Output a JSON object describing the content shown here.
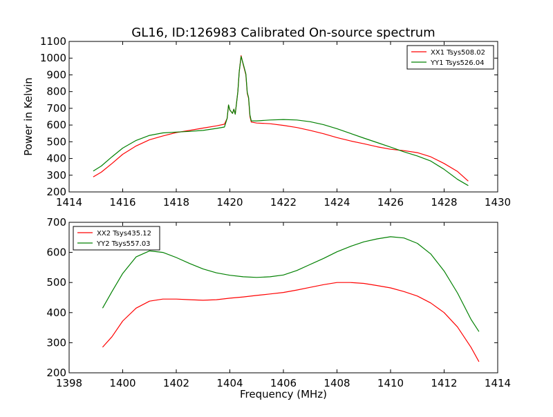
{
  "title": "GL16, ID:126983 Calibrated On-source spectrum",
  "colors": {
    "red": "#ff0000",
    "green": "#008000"
  },
  "chart_data": [
    {
      "type": "line",
      "ylabel": "Power in Kelvin",
      "xlabel": "",
      "xlim": [
        1414,
        1430
      ],
      "ylim": [
        200,
        1100
      ],
      "xticks": [
        1414,
        1416,
        1418,
        1420,
        1422,
        1424,
        1426,
        1428,
        1430
      ],
      "yticks": [
        200,
        300,
        400,
        500,
        600,
        700,
        800,
        900,
        1000,
        1100
      ],
      "legend": "top-right",
      "series": [
        {
          "name": "XX1 Tsys508.02",
          "color": "#ff0000",
          "points": [
            [
              1414.9,
              290
            ],
            [
              1415.2,
              318
            ],
            [
              1415.6,
              370
            ],
            [
              1416.0,
              425
            ],
            [
              1416.5,
              475
            ],
            [
              1417.0,
              512
            ],
            [
              1417.5,
              535
            ],
            [
              1418.0,
              555
            ],
            [
              1418.5,
              568
            ],
            [
              1419.0,
              582
            ],
            [
              1419.5,
              595
            ],
            [
              1419.8,
              605
            ],
            [
              1419.9,
              640
            ],
            [
              1419.95,
              720
            ],
            [
              1420.0,
              690
            ],
            [
              1420.1,
              670
            ],
            [
              1420.15,
              695
            ],
            [
              1420.2,
              665
            ],
            [
              1420.3,
              800
            ],
            [
              1420.35,
              920
            ],
            [
              1420.42,
              1015
            ],
            [
              1420.5,
              960
            ],
            [
              1420.6,
              900
            ],
            [
              1420.65,
              790
            ],
            [
              1420.7,
              760
            ],
            [
              1420.75,
              650
            ],
            [
              1420.8,
              618
            ],
            [
              1421.0,
              612
            ],
            [
              1421.5,
              608
            ],
            [
              1422.0,
              598
            ],
            [
              1422.5,
              585
            ],
            [
              1423.0,
              568
            ],
            [
              1423.5,
              548
            ],
            [
              1424.0,
              525
            ],
            [
              1424.5,
              505
            ],
            [
              1425.0,
              488
            ],
            [
              1425.5,
              470
            ],
            [
              1426.0,
              455
            ],
            [
              1426.5,
              447
            ],
            [
              1427.0,
              435
            ],
            [
              1427.5,
              410
            ],
            [
              1428.0,
              370
            ],
            [
              1428.5,
              322
            ],
            [
              1428.9,
              265
            ]
          ]
        },
        {
          "name": "YY1 Tsys526.04",
          "color": "#008000",
          "points": [
            [
              1414.9,
              325
            ],
            [
              1415.2,
              355
            ],
            [
              1415.6,
              410
            ],
            [
              1416.0,
              462
            ],
            [
              1416.5,
              508
            ],
            [
              1417.0,
              538
            ],
            [
              1417.5,
              553
            ],
            [
              1418.0,
              558
            ],
            [
              1418.5,
              562
            ],
            [
              1419.0,
              568
            ],
            [
              1419.5,
              580
            ],
            [
              1419.8,
              588
            ],
            [
              1419.9,
              640
            ],
            [
              1419.95,
              720
            ],
            [
              1420.0,
              690
            ],
            [
              1420.1,
              670
            ],
            [
              1420.15,
              695
            ],
            [
              1420.2,
              665
            ],
            [
              1420.3,
              800
            ],
            [
              1420.35,
              920
            ],
            [
              1420.42,
              1010
            ],
            [
              1420.5,
              965
            ],
            [
              1420.6,
              905
            ],
            [
              1420.65,
              795
            ],
            [
              1420.7,
              765
            ],
            [
              1420.75,
              660
            ],
            [
              1420.8,
              625
            ],
            [
              1421.0,
              625
            ],
            [
              1421.5,
              630
            ],
            [
              1422.0,
              633
            ],
            [
              1422.5,
              630
            ],
            [
              1423.0,
              620
            ],
            [
              1423.5,
              602
            ],
            [
              1424.0,
              578
            ],
            [
              1424.5,
              550
            ],
            [
              1425.0,
              522
            ],
            [
              1425.5,
              495
            ],
            [
              1426.0,
              468
            ],
            [
              1426.5,
              440
            ],
            [
              1427.0,
              415
            ],
            [
              1427.5,
              385
            ],
            [
              1428.0,
              335
            ],
            [
              1428.5,
              275
            ],
            [
              1428.9,
              238
            ]
          ]
        }
      ]
    },
    {
      "type": "line",
      "ylabel": "",
      "xlabel": "Frequency (MHz)",
      "xlim": [
        1398,
        1414
      ],
      "ylim": [
        200,
        700
      ],
      "xticks": [
        1398,
        1400,
        1402,
        1404,
        1406,
        1408,
        1410,
        1412,
        1414
      ],
      "yticks": [
        200,
        300,
        400,
        500,
        600,
        700
      ],
      "legend": "top-left",
      "series": [
        {
          "name": "XX2 Tsys435.12",
          "color": "#ff0000",
          "points": [
            [
              1399.25,
              285
            ],
            [
              1399.6,
              320
            ],
            [
              1400.0,
              372
            ],
            [
              1400.5,
              415
            ],
            [
              1401.0,
              438
            ],
            [
              1401.5,
              445
            ],
            [
              1402.0,
              445
            ],
            [
              1402.5,
              443
            ],
            [
              1403.0,
              441
            ],
            [
              1403.5,
              443
            ],
            [
              1404.0,
              448
            ],
            [
              1404.5,
              452
            ],
            [
              1405.0,
              457
            ],
            [
              1405.5,
              462
            ],
            [
              1406.0,
              467
            ],
            [
              1406.5,
              475
            ],
            [
              1407.0,
              484
            ],
            [
              1407.5,
              493
            ],
            [
              1408.0,
              500
            ],
            [
              1408.5,
              500
            ],
            [
              1409.0,
              497
            ],
            [
              1409.5,
              490
            ],
            [
              1410.0,
              482
            ],
            [
              1410.5,
              470
            ],
            [
              1411.0,
              455
            ],
            [
              1411.5,
              432
            ],
            [
              1412.0,
              400
            ],
            [
              1412.5,
              352
            ],
            [
              1413.0,
              285
            ],
            [
              1413.3,
              237
            ]
          ]
        },
        {
          "name": "YY2 Tsys557.03",
          "color": "#008000",
          "points": [
            [
              1399.25,
              415
            ],
            [
              1399.6,
              470
            ],
            [
              1400.0,
              530
            ],
            [
              1400.5,
              585
            ],
            [
              1401.0,
              605
            ],
            [
              1401.5,
              600
            ],
            [
              1402.0,
              583
            ],
            [
              1402.5,
              563
            ],
            [
              1403.0,
              545
            ],
            [
              1403.5,
              532
            ],
            [
              1404.0,
              524
            ],
            [
              1404.5,
              519
            ],
            [
              1405.0,
              517
            ],
            [
              1405.5,
              519
            ],
            [
              1406.0,
              525
            ],
            [
              1406.5,
              540
            ],
            [
              1407.0,
              560
            ],
            [
              1407.5,
              580
            ],
            [
              1408.0,
              602
            ],
            [
              1408.5,
              620
            ],
            [
              1409.0,
              635
            ],
            [
              1409.5,
              645
            ],
            [
              1410.0,
              652
            ],
            [
              1410.5,
              648
            ],
            [
              1411.0,
              630
            ],
            [
              1411.5,
              595
            ],
            [
              1412.0,
              538
            ],
            [
              1412.5,
              465
            ],
            [
              1413.0,
              378
            ],
            [
              1413.3,
              337
            ]
          ]
        }
      ]
    }
  ]
}
